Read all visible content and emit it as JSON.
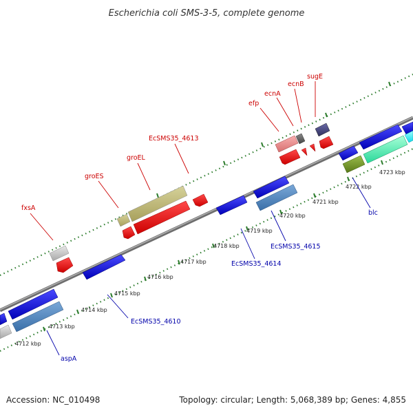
{
  "title": "Escherichia coli SMS-3-5, complete genome",
  "footer": {
    "accession": "Accession: NC_010498",
    "summary": "Topology: circular; Length: 5,068,389 bp; Genes: 4,855"
  },
  "colors": {
    "backbone": "#888888",
    "tick_dots": "#2e7d2e",
    "label_red": "#cc0000",
    "label_blue": "#0000aa"
  },
  "kbp_ticks": [
    "4712 kbp",
    "4713 kbp",
    "4714 kbp",
    "4715 kbp",
    "4716 kbp",
    "4717 kbp",
    "4718 kbp",
    "4719 kbp",
    "4720 kbp",
    "4721 kbp",
    "4722 kbp",
    "4723 kbp"
  ],
  "gene_labels": {
    "top": [
      "fxsA",
      "groES",
      "groEL",
      "EcSMS35_4613",
      "efp",
      "ecnA",
      "ecnB",
      "sugE"
    ],
    "bottom": [
      "aspA",
      "EcSMS35_4610",
      "EcSMS35_4614",
      "EcSMS35_4615",
      "blc"
    ]
  }
}
